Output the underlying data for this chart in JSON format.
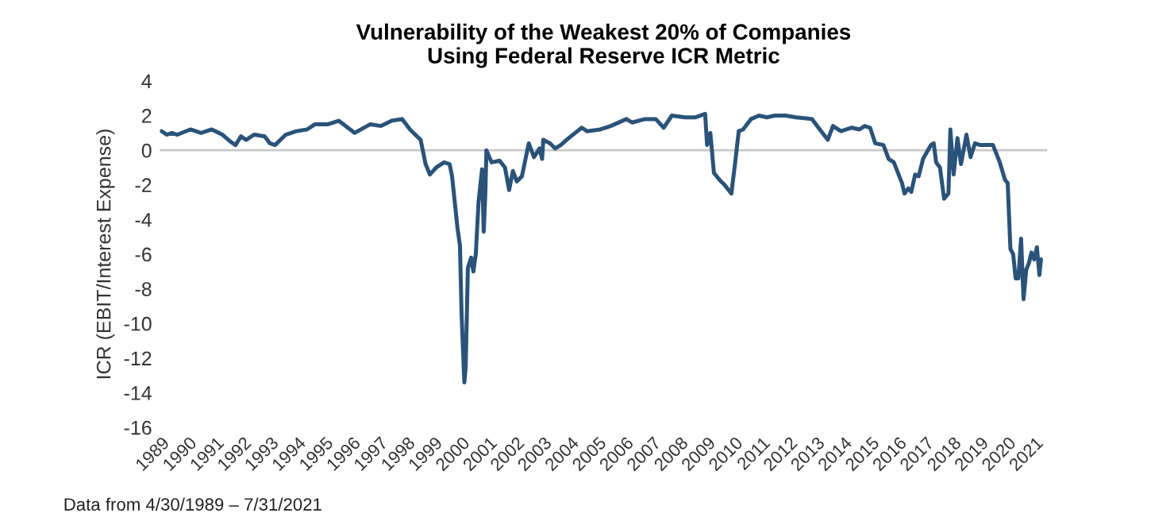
{
  "chart_data": {
    "type": "line",
    "title": "Vulnerability of the Weakest 20% of Companies\nUsing Federal Reserve ICR Metric",
    "ylabel": "ICR (EBIT/Interest Expense)",
    "annotations": [
      "Data from 4/30/1989 – 7/31/2021"
    ],
    "x": [
      1989.26,
      1989.45,
      1989.64,
      1989.84,
      1990.32,
      1990.71,
      1991.1,
      1991.49,
      1991.78,
      1991.97,
      1992.17,
      1992.36,
      1992.65,
      1993.04,
      1993.23,
      1993.42,
      1993.81,
      1994.2,
      1994.59,
      1994.88,
      1995.36,
      1995.75,
      1996.33,
      1996.91,
      1997.3,
      1997.69,
      1998.07,
      1998.36,
      1998.62,
      1998.75,
      1998.93,
      1999.09,
      1999.32,
      1999.61,
      1999.81,
      1999.9,
      2000.0,
      2000.1,
      2000.19,
      2000.25,
      2000.35,
      2000.4,
      2000.48,
      2000.6,
      2000.68,
      2000.77,
      2000.87,
      2001.0,
      2001.06,
      2001.12,
      2001.16,
      2001.35,
      2001.64,
      2001.84,
      2001.99,
      2002.13,
      2002.27,
      2002.46,
      2002.71,
      2002.9,
      2003.1,
      2003.2,
      2003.24,
      2003.49,
      2003.68,
      2003.88,
      2004.17,
      2004.65,
      2004.84,
      2005.33,
      2005.71,
      2006.29,
      2006.49,
      2006.97,
      2007.36,
      2007.65,
      2007.95,
      2008.43,
      2008.82,
      2009.17,
      2009.24,
      2009.36,
      2009.49,
      2009.69,
      2009.88,
      2010.13,
      2010.27,
      2010.4,
      2010.56,
      2010.85,
      2011.14,
      2011.43,
      2011.72,
      2012.11,
      2012.5,
      2013.08,
      2013.37,
      2013.66,
      2013.85,
      2014.14,
      2014.53,
      2014.82,
      2015.01,
      2015.21,
      2015.4,
      2015.7,
      2015.89,
      2016.08,
      2016.38,
      2016.47,
      2016.61,
      2016.72,
      2016.86,
      2016.99,
      2017.15,
      2017.44,
      2017.54,
      2017.63,
      2017.77,
      2017.92,
      2018.08,
      2018.15,
      2018.27,
      2018.41,
      2018.54,
      2018.74,
      2018.89,
      2019.05,
      2019.24,
      2019.71,
      2019.96,
      2020.15,
      2020.25,
      2020.35,
      2020.45,
      2020.54,
      2020.64,
      2020.74,
      2020.83,
      2020.93,
      2021.03,
      2021.12,
      2021.22,
      2021.32,
      2021.41,
      2021.47
    ],
    "series": [
      {
        "color": "#2b5379",
        "values": [
          1.1,
          0.9,
          1.0,
          0.9,
          1.2,
          1.0,
          1.2,
          0.9,
          0.5,
          0.3,
          0.8,
          0.6,
          0.9,
          0.8,
          0.4,
          0.3,
          0.9,
          1.1,
          1.2,
          1.5,
          1.5,
          1.7,
          1.0,
          1.5,
          1.4,
          1.7,
          1.8,
          1.2,
          0.8,
          0.6,
          -0.8,
          -1.4,
          -1.0,
          -0.7,
          -0.8,
          -1.5,
          -3.0,
          -4.5,
          -5.5,
          -9.5,
          -13.4,
          -12.5,
          -6.8,
          -6.2,
          -7.0,
          -6.0,
          -3.0,
          -1.1,
          -4.7,
          -2.5,
          0.0,
          -0.7,
          -0.6,
          -1.0,
          -2.3,
          -1.2,
          -1.8,
          -1.5,
          0.4,
          -0.4,
          0.1,
          -0.5,
          0.6,
          0.4,
          0.1,
          0.3,
          0.7,
          1.3,
          1.1,
          1.2,
          1.4,
          1.8,
          1.6,
          1.8,
          1.8,
          1.3,
          2.0,
          1.9,
          1.9,
          2.1,
          0.3,
          1.0,
          -1.3,
          -1.7,
          -2.0,
          -2.5,
          -0.7,
          1.1,
          1.2,
          1.8,
          2.0,
          1.9,
          2.0,
          2.0,
          1.9,
          1.8,
          1.2,
          0.6,
          1.4,
          1.1,
          1.3,
          1.2,
          1.4,
          1.3,
          0.4,
          0.3,
          -0.5,
          -0.7,
          -1.9,
          -2.5,
          -2.2,
          -2.4,
          -1.4,
          -1.5,
          -0.5,
          0.3,
          0.4,
          -0.7,
          -1.0,
          -2.8,
          -2.5,
          1.2,
          -1.4,
          0.7,
          -0.8,
          0.9,
          -0.4,
          0.4,
          0.3,
          0.3,
          -0.7,
          -1.7,
          -1.9,
          -5.7,
          -6.0,
          -7.4,
          -7.4,
          -5.1,
          -8.6,
          -6.9,
          -6.5,
          -5.9,
          -6.3,
          -5.6,
          -7.2,
          -6.3
        ]
      }
    ],
    "xlim": [
      1989.2,
      2021.7
    ],
    "xticks": [
      {
        "value": 1989.25,
        "label": "1989"
      },
      {
        "value": 1990.25,
        "label": "1990"
      },
      {
        "value": 1991.25,
        "label": "1991"
      },
      {
        "value": 1992.25,
        "label": "1992"
      },
      {
        "value": 1993.25,
        "label": "1993"
      },
      {
        "value": 1994.25,
        "label": "1994"
      },
      {
        "value": 1995.25,
        "label": "1995"
      },
      {
        "value": 1996.25,
        "label": "1996"
      },
      {
        "value": 1997.25,
        "label": "1997"
      },
      {
        "value": 1998.25,
        "label": "1998"
      },
      {
        "value": 1999.25,
        "label": "1999"
      },
      {
        "value": 2000.25,
        "label": "2000"
      },
      {
        "value": 2001.25,
        "label": "2001"
      },
      {
        "value": 2002.25,
        "label": "2002"
      },
      {
        "value": 2003.25,
        "label": "2003"
      },
      {
        "value": 2004.25,
        "label": "2004"
      },
      {
        "value": 2005.25,
        "label": "2005"
      },
      {
        "value": 2006.25,
        "label": "2006"
      },
      {
        "value": 2007.25,
        "label": "2007"
      },
      {
        "value": 2008.25,
        "label": "2008"
      },
      {
        "value": 2009.25,
        "label": "2009"
      },
      {
        "value": 2010.25,
        "label": "2010"
      },
      {
        "value": 2011.25,
        "label": "2011"
      },
      {
        "value": 2012.25,
        "label": "2012"
      },
      {
        "value": 2013.25,
        "label": "2013"
      },
      {
        "value": 2014.25,
        "label": "2014"
      },
      {
        "value": 2015.25,
        "label": "2015"
      },
      {
        "value": 2016.25,
        "label": "2016"
      },
      {
        "value": 2017.25,
        "label": "2017"
      },
      {
        "value": 2018.25,
        "label": "2018"
      },
      {
        "value": 2019.25,
        "label": "2019"
      },
      {
        "value": 2020.25,
        "label": "2020"
      },
      {
        "value": 2021.25,
        "label": "2021"
      }
    ],
    "ylim": [
      -16,
      4
    ],
    "yticks": [
      -16,
      -14,
      -12,
      -10,
      -8,
      -6,
      -4,
      -2,
      0,
      2,
      4
    ],
    "ref_lines": [
      {
        "axis": "y",
        "value": 0,
        "color": "#c8c8c8"
      }
    ],
    "grid": false,
    "legend": false
  }
}
